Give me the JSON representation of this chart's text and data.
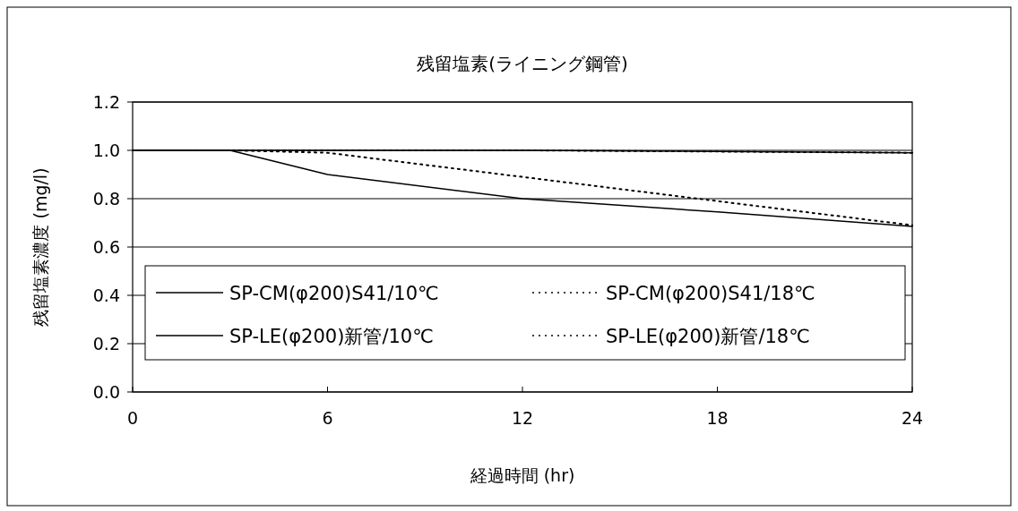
{
  "chart_data": {
    "type": "line",
    "title": "残留塩素(ライニング鋼管)",
    "xlabel": "経過時間 (hr)",
    "ylabel": "残留塩素濃度 (mg/l)",
    "x": [
      0,
      3,
      6,
      12,
      18,
      24
    ],
    "series": [
      {
        "name": "SP-CM(φ200)S41/10℃",
        "color": "#000000",
        "line_style": "solid",
        "values": [
          1.0,
          1.0,
          0.9,
          0.8,
          0.745,
          0.685
        ]
      },
      {
        "name": "SP-CM(φ200)S41/18℃",
        "color": "#000000",
        "line_style": "dotted",
        "values": [
          1.0,
          1.0,
          0.99,
          0.89,
          0.79,
          0.69
        ]
      },
      {
        "name": "SP-LE(φ200)新管/10℃",
        "color": "#000000",
        "line_style": "solid",
        "values": [
          1.0,
          1.0,
          1.0,
          1.0,
          0.995,
          0.99
        ]
      },
      {
        "name": "SP-LE(φ200)新管/18℃",
        "color": "#000000",
        "line_style": "dotted",
        "values": [
          1.0,
          1.0,
          1.0,
          1.0,
          0.995,
          0.99
        ]
      }
    ],
    "xlim": [
      0,
      24
    ],
    "xticks": [
      0,
      6,
      12,
      18,
      24
    ],
    "ylim": [
      0,
      1.2
    ],
    "yticks": [
      {
        "value": 0,
        "label": "0.0"
      },
      {
        "value": 0.2,
        "label": "0.2"
      },
      {
        "value": 0.4,
        "label": "0.4"
      },
      {
        "value": 0.6,
        "label": "0.6"
      },
      {
        "value": 0.8,
        "label": "0.8"
      },
      {
        "value": 1.0,
        "label": "1.0"
      },
      {
        "value": 1.2,
        "label": "1.2"
      }
    ],
    "grid": "y",
    "legend": "bottom"
  }
}
